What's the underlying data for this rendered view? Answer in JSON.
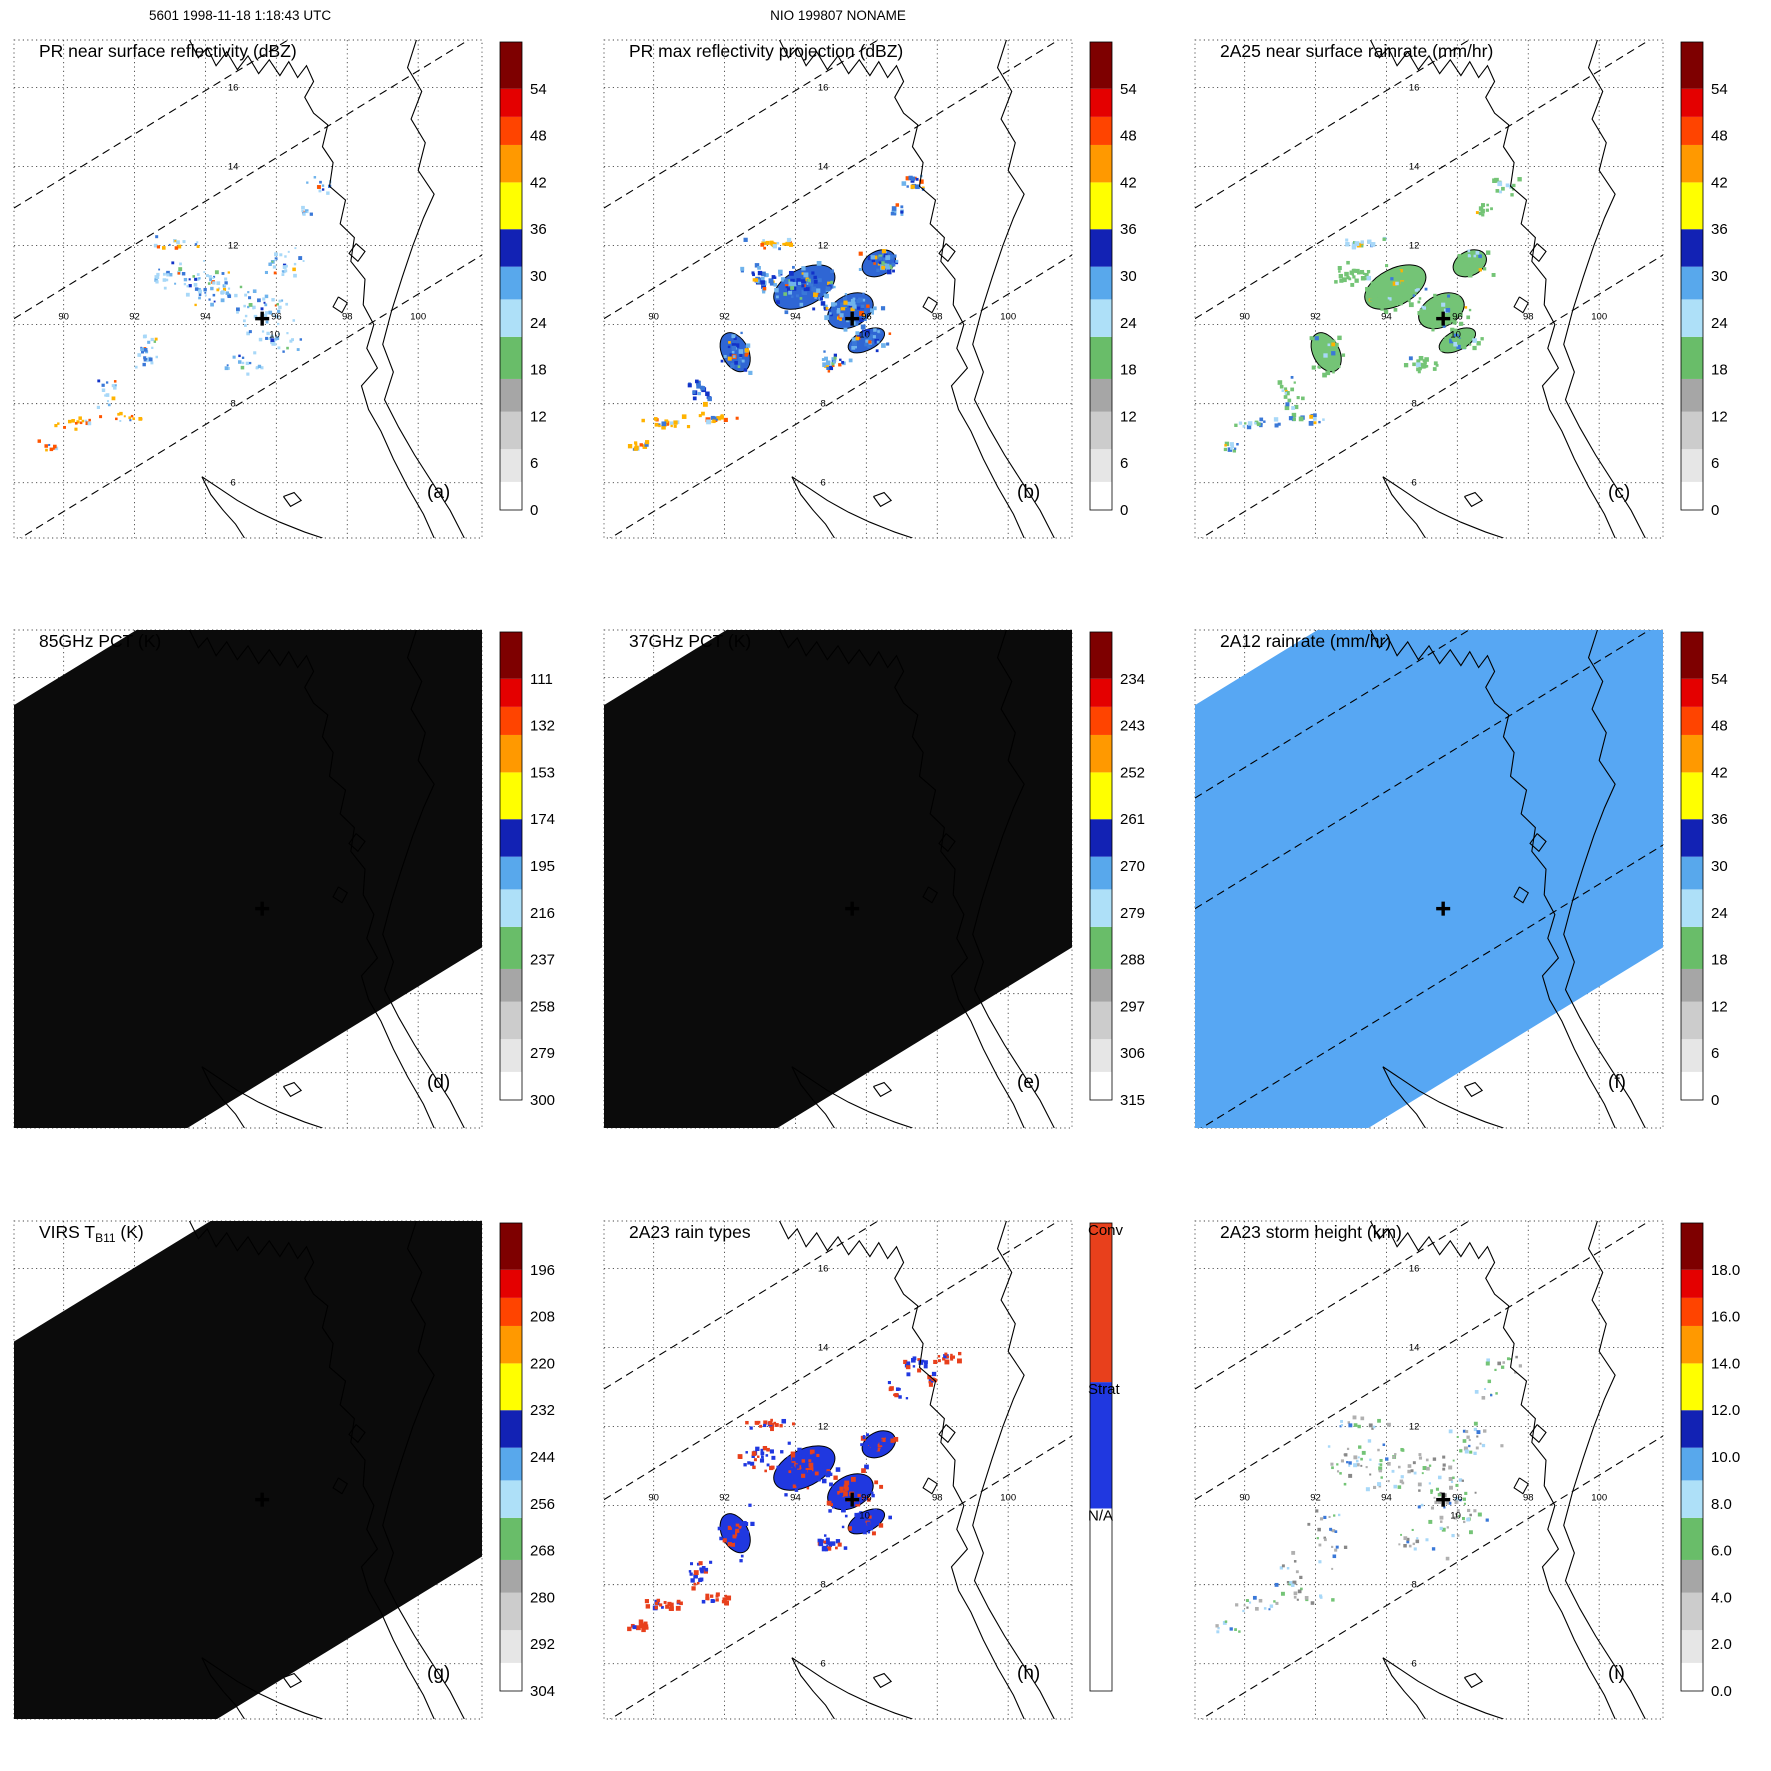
{
  "header": {
    "left": "5601 1998-11-18 1:18:43 UTC",
    "center": "NIO 199807 NONAME"
  },
  "map": {
    "range": {
      "lon0": 88.6,
      "lon1": 101.8,
      "lat0": 4.6,
      "lat1": 17.2
    },
    "lon_labels": [
      "90",
      "92",
      "94",
      "96",
      "98",
      "100"
    ],
    "lat_labels": [
      "16",
      "14",
      "12",
      "8",
      "6"
    ],
    "center_lat_label": "10",
    "storm_center": {
      "lon": 95.6,
      "lat": 10.15
    },
    "swath": {
      "slope": 0.55,
      "ref_lon": 95.6,
      "dash_intercepts": [
        16.8,
        14.0,
        8.35
      ]
    }
  },
  "colorbar_styles": {
    "rainbow": [
      {
        "f0": 0.0,
        "f1": 0.06,
        "color": "#ffffff"
      },
      {
        "f0": 0.06,
        "f1": 0.13,
        "color": "#e6e6e6"
      },
      {
        "f0": 0.13,
        "f1": 0.21,
        "color": "#cccccc"
      },
      {
        "f0": 0.21,
        "f1": 0.28,
        "color": "#a6a6a6"
      },
      {
        "f0": 0.28,
        "f1": 0.37,
        "color": "#69bd69"
      },
      {
        "f0": 0.37,
        "f1": 0.45,
        "color": "#aee0f8"
      },
      {
        "f0": 0.45,
        "f1": 0.52,
        "color": "#58a8ec"
      },
      {
        "f0": 0.52,
        "f1": 0.6,
        "color": "#1222b4"
      },
      {
        "f0": 0.6,
        "f1": 0.7,
        "color": "#ffff00"
      },
      {
        "f0": 0.7,
        "f1": 0.78,
        "color": "#ff9900"
      },
      {
        "f0": 0.78,
        "f1": 0.84,
        "color": "#ff4400"
      },
      {
        "f0": 0.84,
        "f1": 0.9,
        "color": "#e40000"
      },
      {
        "f0": 0.9,
        "f1": 1.0,
        "color": "#7e0000"
      }
    ],
    "raintype": [
      {
        "f0": 0.0,
        "f1": 0.39,
        "color": "#ffffff"
      },
      {
        "f0": 0.39,
        "f1": 0.66,
        "color": "#2038e0"
      },
      {
        "f0": 0.66,
        "f1": 1.0,
        "color": "#e8401c"
      }
    ]
  },
  "palettes": {
    "pr": [
      [
        "#a8d8f8",
        42
      ],
      [
        "#6fb3ec",
        22
      ],
      [
        "#3a78d8",
        16
      ],
      [
        "#1233c8",
        7
      ],
      [
        "#74c476",
        6
      ],
      [
        "#ffb300",
        4
      ],
      [
        "#ff5500",
        3
      ]
    ],
    "prb": [
      [
        "#6fb3ec",
        30
      ],
      [
        "#3a78d8",
        30
      ],
      [
        "#1233c8",
        18
      ],
      [
        "#74c476",
        5
      ],
      [
        "#ffb300",
        9
      ],
      [
        "#ff5500",
        8
      ]
    ],
    "rain": [
      [
        "#74c476",
        84
      ],
      [
        "#a8d8f8",
        8
      ],
      [
        "#3a78d8",
        4
      ],
      [
        "#ffb300",
        4
      ]
    ],
    "streak_or": [
      [
        "#ffb300",
        45
      ],
      [
        "#ff5500",
        25
      ],
      [
        "#a8d8f8",
        15
      ],
      [
        "#3a78d8",
        15
      ]
    ],
    "streak_c": [
      [
        "#a8d8f8",
        40
      ],
      [
        "#3a78d8",
        30
      ],
      [
        "#74c476",
        20
      ],
      [
        "#ffb300",
        10
      ]
    ],
    "raintype": [
      [
        "#2038e0",
        75
      ],
      [
        "#e8401c",
        25
      ]
    ],
    "red": [
      [
        "#e8401c",
        88
      ],
      [
        "#2038e0",
        12
      ]
    ],
    "height": [
      [
        "#b0b0b0",
        32
      ],
      [
        "#74c476",
        28
      ],
      [
        "#a8d8f8",
        18
      ],
      [
        "#888888",
        12
      ],
      [
        "#3a78d8",
        10
      ]
    ]
  },
  "storm_clusters": [
    {
      "lon": 93.3,
      "lat": 12.05,
      "w": 1.05,
      "h": 0.22,
      "n": 18,
      "streak": true
    },
    {
      "lon": 92.95,
      "lat": 11.25,
      "w": 0.7,
      "h": 0.45,
      "n": 24
    },
    {
      "lon": 94.25,
      "lat": 10.95,
      "w": 1.5,
      "h": 0.75,
      "n": 72,
      "big": true
    },
    {
      "lon": 95.55,
      "lat": 10.35,
      "w": 1.1,
      "h": 0.65,
      "n": 50,
      "big": true
    },
    {
      "lon": 96.35,
      "lat": 11.55,
      "w": 0.8,
      "h": 0.5,
      "n": 30,
      "big": true
    },
    {
      "lon": 96.0,
      "lat": 9.6,
      "w": 0.9,
      "h": 0.4,
      "n": 26,
      "big": true
    },
    {
      "lon": 95.0,
      "lat": 9.0,
      "w": 0.8,
      "h": 0.35,
      "n": 20
    },
    {
      "lon": 92.3,
      "lat": 9.3,
      "w": 0.6,
      "h": 0.85,
      "n": 30,
      "big": true
    },
    {
      "lon": 91.3,
      "lat": 8.25,
      "w": 0.45,
      "h": 0.55,
      "n": 18
    },
    {
      "lon": 90.35,
      "lat": 7.5,
      "w": 0.85,
      "h": 0.22,
      "n": 18,
      "streak": true
    },
    {
      "lon": 91.75,
      "lat": 7.65,
      "w": 0.75,
      "h": 0.2,
      "n": 14,
      "streak": true
    },
    {
      "lon": 89.6,
      "lat": 6.9,
      "w": 0.5,
      "h": 0.18,
      "n": 10,
      "streak": true
    },
    {
      "lon": 97.35,
      "lat": 13.55,
      "w": 0.55,
      "h": 0.35,
      "n": 14
    },
    {
      "lon": 96.85,
      "lat": 12.9,
      "w": 0.35,
      "h": 0.25,
      "n": 9
    }
  ],
  "h_extra_clusters": [
    {
      "lon": 98.3,
      "lat": 13.75,
      "w": 0.5,
      "h": 0.3,
      "n": 14,
      "streak": true
    },
    {
      "lon": 97.9,
      "lat": 13.2,
      "w": 0.35,
      "h": 0.2,
      "n": 8,
      "streak": true
    }
  ],
  "chart_data": {
    "type": "heatmap",
    "note": "3x3 panel TRMM overpass figure; lon 88.6-101.8 E, lat 4.6-17.2 N, storm center marked at 95.6E 10.15N",
    "panels": [
      {
        "id": "a",
        "title": "PR near surface reflectivity (dBZ)",
        "label": "(a)",
        "colorbar": {
          "style": "rainbow",
          "ticks": [
            "0",
            "6",
            "12",
            "18",
            "24",
            "30",
            "36",
            "42",
            "48",
            "54"
          ]
        },
        "dashes": true,
        "field": {
          "kind": "specks",
          "seed": 11,
          "palette": "pr",
          "streak_palette": "streak_or",
          "density": 0.85,
          "size": 2.6,
          "spread": 1.0
        }
      },
      {
        "id": "b",
        "title": "PR max reflectivity projection (dBZ)",
        "label": "(b)",
        "colorbar": {
          "style": "rainbow",
          "ticks": [
            "0",
            "6",
            "12",
            "18",
            "24",
            "30",
            "36",
            "42",
            "48",
            "54"
          ]
        },
        "dashes": true,
        "field": {
          "kind": "specks",
          "seed": 22,
          "palette": "prb",
          "streak_palette": "streak_or",
          "density": 1.15,
          "size": 3.3,
          "spread": 1.0,
          "blobs": true,
          "blob_fill": "#2f66d4"
        }
      },
      {
        "id": "c",
        "title": "2A25 near surface rainrate (mm/hr)",
        "label": "(c)",
        "colorbar": {
          "style": "rainbow",
          "ticks": [
            "0",
            "6",
            "12",
            "18",
            "24",
            "30",
            "36",
            "42",
            "48",
            "54"
          ]
        },
        "dashes": true,
        "field": {
          "kind": "specks",
          "seed": 33,
          "palette": "rain",
          "streak_palette": "streak_c",
          "density": 1.0,
          "size": 3.2,
          "spread": 1.0,
          "blobs": true,
          "blob_fill": "#74c476"
        }
      },
      {
        "id": "d",
        "title": "85GHz PCT (K)",
        "label": "(d)",
        "colorbar": {
          "style": "rainbow",
          "ticks": [
            "300",
            "279",
            "258",
            "237",
            "216",
            "195",
            "174",
            "153",
            "132",
            "111"
          ]
        },
        "band": {
          "hi": 19.15,
          "lo": 5.76,
          "color": "#0b0b0b"
        }
      },
      {
        "id": "e",
        "title": "37GHz PCT (K)",
        "label": "(e)",
        "colorbar": {
          "style": "rainbow",
          "ticks": [
            "315",
            "306",
            "297",
            "288",
            "279",
            "270",
            "261",
            "252",
            "243",
            "234"
          ]
        },
        "band": {
          "hi": 19.15,
          "lo": 5.76,
          "color": "#0b0b0b"
        }
      },
      {
        "id": "f",
        "title": "2A12 rainrate (mm/hr)",
        "label": "(f)",
        "colorbar": {
          "style": "rainbow",
          "ticks": [
            "0",
            "6",
            "12",
            "18",
            "24",
            "30",
            "36",
            "42",
            "48",
            "54"
          ]
        },
        "dashes": true,
        "band": {
          "hi": 19.15,
          "lo": 5.76,
          "color": "#57a7f3"
        }
      },
      {
        "id": "g",
        "title": "VIRS T_{B11} (K)",
        "label": "(g)",
        "colorbar": {
          "style": "rainbow",
          "ticks": [
            "304",
            "292",
            "280",
            "268",
            "256",
            "244",
            "232",
            "220",
            "208",
            "196"
          ]
        },
        "band": {
          "hi": 18.0,
          "lo": 5.3,
          "color": "#0b0b0b"
        }
      },
      {
        "id": "h",
        "title": "2A23 rain types",
        "label": "(h)",
        "colorbar": {
          "style": "raintype",
          "labels": [
            {
              "text": "Conv",
              "f": 1.0
            },
            {
              "text": "Strat",
              "f": 0.66
            },
            {
              "text": "N/A",
              "f": 0.39
            }
          ]
        },
        "dashes": true,
        "field": {
          "kind": "specks",
          "seed": 44,
          "palette": "raintype",
          "streak_palette": "red",
          "density": 1.1,
          "size": 3.3,
          "spread": 1.0,
          "blobs": true,
          "blob_fill": "#2038e0",
          "extra": "h_extra_clusters"
        }
      },
      {
        "id": "i",
        "title": "2A23 storm height (km)",
        "label": "(i)",
        "colorbar": {
          "style": "rainbow",
          "ticks": [
            "0.0",
            "2.0",
            "4.0",
            "6.0",
            "8.0",
            "10.0",
            "12.0",
            "14.0",
            "16.0",
            "18.0"
          ]
        },
        "dashes": true,
        "field": {
          "kind": "specks",
          "seed": 55,
          "palette": "height",
          "streak_palette": "height",
          "density": 0.75,
          "size": 2.7,
          "spread": 1.35
        }
      }
    ]
  }
}
